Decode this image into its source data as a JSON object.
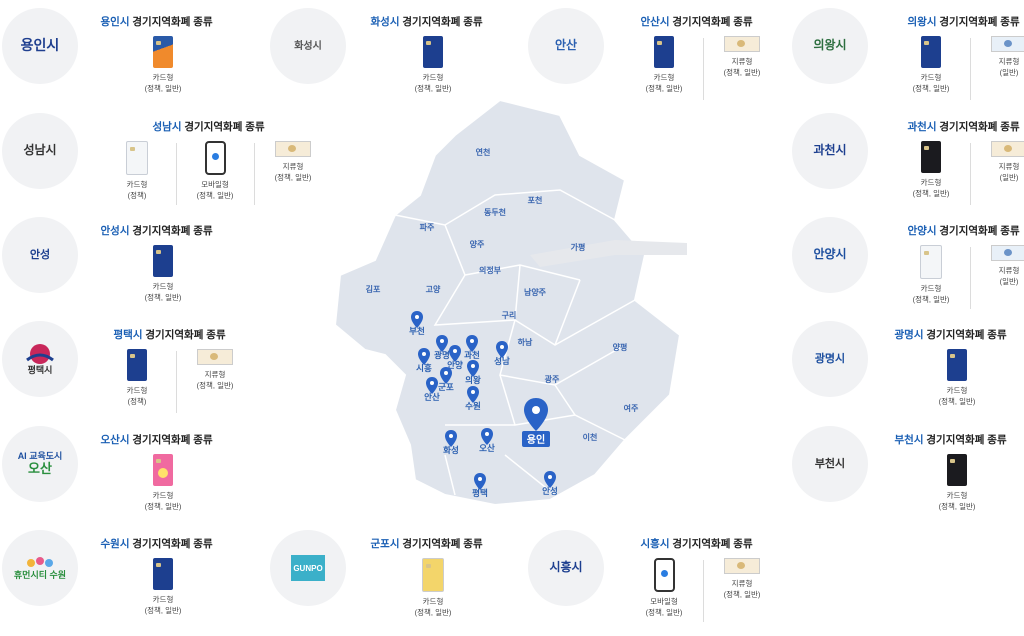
{
  "title_suffix": "경기지역화폐 종류",
  "logos": {
    "yongin": "용인시",
    "hwaseong": "화성시",
    "ansan": "안산",
    "uiwang": "의왕시",
    "seongnam": "성남시",
    "gwacheon": "과천시",
    "anseong": "안성",
    "anyang": "안양시",
    "pyeongtaek": "평택시",
    "gwangmyeong": "광명시",
    "osan_ai": "AI 교육도시",
    "osan": "오산",
    "bucheon": "부천시",
    "suwon": "휴먼시티 수원",
    "gunpo": "GUNPO",
    "siheung": "시흥시"
  },
  "panels": [
    {
      "city": "용인시",
      "items": [
        {
          "type": "card",
          "variant": "orange",
          "line1": "카드형",
          "line2": "(정책, 일반)"
        }
      ]
    },
    {
      "city": "화성시",
      "items": [
        {
          "type": "card",
          "variant": "blue",
          "line1": "카드형",
          "line2": "(정책, 일반)"
        }
      ]
    },
    {
      "city": "안산시",
      "items": [
        {
          "type": "card",
          "variant": "blue",
          "line1": "카드형",
          "line2": "(정책, 일반)"
        },
        {
          "type": "note",
          "variant": "tan",
          "line1": "지류형",
          "line2": "(정책, 일반)"
        }
      ]
    },
    {
      "city": "의왕시",
      "items": [
        {
          "type": "card",
          "variant": "blue",
          "line1": "카드형",
          "line2": "(정책, 일반)"
        },
        {
          "type": "note",
          "variant": "blue",
          "line1": "지류형",
          "line2": "(일반)"
        }
      ]
    },
    {
      "city": "성남시",
      "items": [
        {
          "type": "card",
          "variant": "light",
          "line1": "카드형",
          "line2": "(정책)"
        },
        {
          "type": "mobile",
          "line1": "모바일형",
          "line2": "(정책, 일반)"
        },
        {
          "type": "note",
          "variant": "tan",
          "line1": "지류형",
          "line2": "(정책, 일반)"
        }
      ]
    },
    {
      "city": "과천시",
      "items": [
        {
          "type": "card",
          "variant": "dark",
          "line1": "카드형",
          "line2": "(정책, 일반)"
        },
        {
          "type": "note",
          "variant": "tan",
          "line1": "지류형",
          "line2": "(일반)"
        }
      ]
    },
    {
      "city": "안성시",
      "items": [
        {
          "type": "card",
          "variant": "blue",
          "line1": "카드형",
          "line2": "(정책, 일반)"
        }
      ]
    },
    {
      "city": "안양시",
      "items": [
        {
          "type": "card",
          "variant": "light",
          "line1": "카드형",
          "line2": "(정책, 일반)"
        },
        {
          "type": "note",
          "variant": "blue",
          "line1": "지류형",
          "line2": "(일반)"
        }
      ]
    },
    {
      "city": "평택시",
      "items": [
        {
          "type": "card",
          "variant": "blue",
          "line1": "카드형",
          "line2": "(정책)"
        },
        {
          "type": "note",
          "variant": "tan",
          "line1": "지류형",
          "line2": "(정책, 일반)"
        }
      ]
    },
    {
      "city": "광명시",
      "items": [
        {
          "type": "card",
          "variant": "blue",
          "line1": "카드형",
          "line2": "(정책, 일반)"
        }
      ]
    },
    {
      "city": "오산시",
      "items": [
        {
          "type": "card",
          "variant": "pink",
          "line1": "카드형",
          "line2": "(정책, 일반)"
        }
      ]
    },
    {
      "city": "부천시",
      "items": [
        {
          "type": "card",
          "variant": "dark",
          "line1": "카드형",
          "line2": "(정책, 일반)"
        }
      ]
    },
    {
      "city": "수원시",
      "items": [
        {
          "type": "card",
          "variant": "blue",
          "line1": "카드형",
          "line2": "(정책, 일반)"
        }
      ]
    },
    {
      "city": "군포시",
      "items": [
        {
          "type": "card",
          "variant": "yellow",
          "line1": "카드형",
          "line2": "(정책, 일반)"
        }
      ]
    },
    {
      "city": "시흥시",
      "items": [
        {
          "type": "mobile",
          "line1": "모바일형",
          "line2": "(정책, 일반)"
        },
        {
          "type": "note",
          "variant": "tan",
          "line1": "지류형",
          "line2": "(정책, 일반)"
        }
      ]
    }
  ],
  "map": {
    "regions": [
      "연천",
      "포천",
      "동두천",
      "파주",
      "양주",
      "가평",
      "의정부",
      "김포",
      "고양",
      "남양주",
      "구리",
      "하남",
      "양평",
      "여주",
      "이천",
      "광주"
    ],
    "pins": [
      "부천",
      "시흥",
      "광명",
      "안양",
      "과천",
      "성남",
      "의왕",
      "군포",
      "안산",
      "수원",
      "화성",
      "오산",
      "평택",
      "안성"
    ],
    "highlight": "용인"
  }
}
